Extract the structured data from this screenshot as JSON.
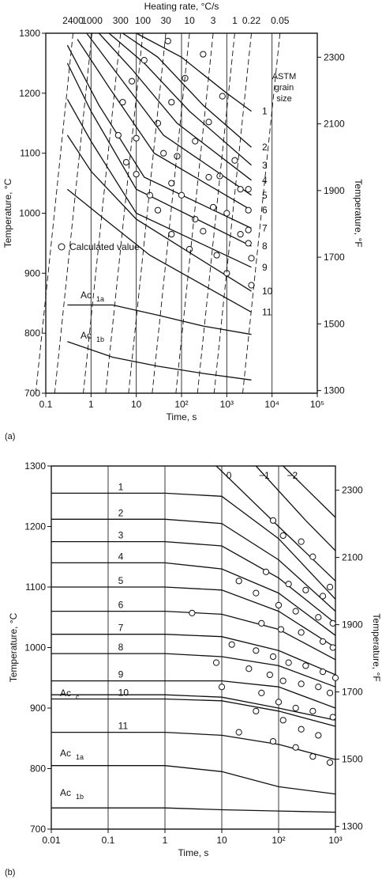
{
  "chart_data": [
    {
      "id": "a",
      "type": "line",
      "panel_label": "(a)",
      "top_axis_label": "Heating rate, °C/s",
      "top_ticks": [
        "2400",
        "1000",
        "300",
        "100",
        "30",
        "10",
        "3",
        "1",
        "0.22",
        "0.05"
      ],
      "xlabel": "Time, s",
      "xscale": "log",
      "xlim": [
        0.1,
        100000
      ],
      "xticks": [
        "0.1",
        "1",
        "10",
        "10²",
        "10³",
        "10⁴",
        "10⁵"
      ],
      "ylabel": "Temperature, °C",
      "ylim": [
        700,
        1300
      ],
      "yticks": [
        "700",
        "800",
        "900",
        "1000",
        "1100",
        "1200",
        "1300"
      ],
      "y2label": "Temperature, °F",
      "y2ticks": [
        "1300",
        "1500",
        "1700",
        "1900",
        "2100",
        "2300"
      ],
      "grain_title": [
        "ASTM",
        "grain",
        "size"
      ],
      "legend_text": "Calculated value",
      "labels": {
        "grain_1": "1",
        "grain_2": "2",
        "grain_3": "3",
        "grain_4": "4",
        "grain_5": "5",
        "grain_6": "6",
        "grain_7": "7",
        "grain_8": "8",
        "grain_9": "9",
        "grain_10": "10",
        "grain_11": "11",
        "ac1a": "Ac",
        "ac1a_sub": "1a",
        "ac1b": "Ac",
        "ac1b_sub": "1b"
      },
      "series": [
        {
          "name": "1",
          "points": [
            [
              10,
              1300
            ],
            [
              100,
              1260
            ],
            [
              1000,
              1200
            ],
            [
              3500,
              1170
            ]
          ]
        },
        {
          "name": "2",
          "points": [
            [
              5,
              1300
            ],
            [
              30,
              1260
            ],
            [
              300,
              1180
            ],
            [
              3500,
              1110
            ]
          ]
        },
        {
          "name": "3",
          "points": [
            [
              2.5,
              1300
            ],
            [
              15,
              1250
            ],
            [
              150,
              1170
            ],
            [
              3500,
              1080
            ]
          ]
        },
        {
          "name": "4",
          "points": [
            [
              1.5,
              1300
            ],
            [
              8,
              1240
            ],
            [
              80,
              1150
            ],
            [
              3500,
              1055
            ]
          ]
        },
        {
          "name": "5",
          "points": [
            [
              0.8,
              1300
            ],
            [
              4,
              1230
            ],
            [
              40,
              1130
            ],
            [
              3500,
              1030
            ]
          ]
        },
        {
          "name": "6",
          "points": [
            [
              0.5,
              1290
            ],
            [
              2.5,
              1210
            ],
            [
              25,
              1100
            ],
            [
              3500,
              1005
            ]
          ]
        },
        {
          "name": "7",
          "points": [
            [
              0.3,
              1280
            ],
            [
              1.5,
              1180
            ],
            [
              15,
              1060
            ],
            [
              3500,
              975
            ]
          ]
        },
        {
          "name": "8",
          "points": [
            [
              0.3,
              1250
            ],
            [
              1,
              1170
            ],
            [
              10,
              1040
            ],
            [
              3500,
              945
            ]
          ]
        },
        {
          "name": "9",
          "points": [
            [
              0.3,
              1190
            ],
            [
              1,
              1120
            ],
            [
              10,
              1000
            ],
            [
              3500,
              910
            ]
          ]
        },
        {
          "name": "10",
          "points": [
            [
              0.3,
              1130
            ],
            [
              1,
              1070
            ],
            [
              10,
              990
            ],
            [
              3500,
              870
            ]
          ]
        },
        {
          "name": "11",
          "points": [
            [
              0.3,
              1040
            ],
            [
              2,
              990
            ],
            [
              20,
              930
            ],
            [
              3500,
              835
            ]
          ]
        },
        {
          "name": "Ac1a",
          "points": [
            [
              0.3,
              847
            ],
            [
              3,
              847
            ],
            [
              30,
              830
            ],
            [
              300,
              812
            ],
            [
              3500,
              798
            ]
          ]
        },
        {
          "name": "Ac1b",
          "points": [
            [
              0.3,
              786
            ],
            [
              3,
              760
            ],
            [
              30,
              745
            ],
            [
              300,
              733
            ],
            [
              3500,
              722
            ]
          ]
        }
      ],
      "calculated_values": [
        [
          50,
          1287
        ],
        [
          300,
          1265
        ],
        [
          15,
          1255
        ],
        [
          120,
          1225
        ],
        [
          800,
          1195
        ],
        [
          8,
          1220
        ],
        [
          60,
          1185
        ],
        [
          400,
          1152
        ],
        [
          5,
          1185
        ],
        [
          30,
          1150
        ],
        [
          200,
          1120
        ],
        [
          1500,
          1088
        ],
        [
          10,
          1125
        ],
        [
          80,
          1095
        ],
        [
          700,
          1062
        ],
        [
          3000,
          1040
        ],
        [
          4,
          1130
        ],
        [
          40,
          1100
        ],
        [
          400,
          1060
        ],
        [
          2000,
          1040
        ],
        [
          6,
          1085
        ],
        [
          60,
          1050
        ],
        [
          500,
          1010
        ],
        [
          10,
          1065
        ],
        [
          100,
          1030
        ],
        [
          1000,
          1000
        ],
        [
          3000,
          1005
        ],
        [
          20,
          1030
        ],
        [
          200,
          990
        ],
        [
          2000,
          965
        ],
        [
          3000,
          972
        ],
        [
          30,
          1005
        ],
        [
          300,
          970
        ],
        [
          3000,
          950
        ],
        [
          60,
          965
        ],
        [
          600,
          930
        ],
        [
          3500,
          925
        ],
        [
          150,
          940
        ],
        [
          1000,
          900
        ],
        [
          3500,
          880
        ]
      ]
    },
    {
      "id": "b",
      "type": "line",
      "panel_label": "(b)",
      "xlabel": "Time, s",
      "xscale": "log",
      "xlim": [
        0.01,
        1000
      ],
      "xticks": [
        "0.01",
        "0.1",
        "1",
        "10",
        "10²",
        "10³"
      ],
      "ylabel": "Temperature, °C",
      "ylim": [
        700,
        1300
      ],
      "yticks": [
        "700",
        "800",
        "900",
        "1000",
        "1100",
        "1200",
        "1300"
      ],
      "y2label": "Temperature, °F",
      "y2ticks": [
        "1300",
        "1500",
        "1700",
        "1900",
        "2100",
        "2300"
      ],
      "labels": {
        "grain_1": "1",
        "grain_2": "2",
        "grain_3": "3",
        "grain_4": "4",
        "grain_5": "5",
        "grain_6": "6",
        "grain_7": "7",
        "grain_8": "8",
        "grain_9": "9",
        "grain_10": "10",
        "grain_11": "11",
        "grain_0": "0",
        "grain_m1": "−1",
        "grain_m2": "−2",
        "acc": "Ac",
        "acc_sub": "c",
        "ac1a": "Ac",
        "ac1a_sub": "1a",
        "ac1b": "Ac",
        "ac1b_sub": "1b"
      },
      "series": [
        {
          "name": "0",
          "points": [
            [
              8,
              1300
            ],
            [
              100,
              1200
            ],
            [
              1000,
              1110
            ]
          ]
        },
        {
          "name": "−1",
          "points": [
            [
              40,
              1300
            ],
            [
              300,
              1210
            ],
            [
              1000,
              1160
            ]
          ]
        },
        {
          "name": "−2",
          "points": [
            [
              120,
              1300
            ],
            [
              1000,
              1215
            ]
          ]
        },
        {
          "name": "1",
          "points": [
            [
              0.01,
              1255
            ],
            [
              1,
              1255
            ],
            [
              10,
              1250
            ],
            [
              100,
              1180
            ],
            [
              1000,
              1080
            ]
          ]
        },
        {
          "name": "2",
          "points": [
            [
              0.01,
              1212
            ],
            [
              1,
              1212
            ],
            [
              10,
              1205
            ],
            [
              100,
              1145
            ],
            [
              1000,
              1060
            ]
          ]
        },
        {
          "name": "3",
          "points": [
            [
              0.01,
              1175
            ],
            [
              1,
              1175
            ],
            [
              10,
              1168
            ],
            [
              100,
              1115
            ],
            [
              1000,
              1040
            ]
          ]
        },
        {
          "name": "4",
          "points": [
            [
              0.01,
              1140
            ],
            [
              1,
              1140
            ],
            [
              10,
              1130
            ],
            [
              100,
              1090
            ],
            [
              1000,
              1020
            ]
          ]
        },
        {
          "name": "5",
          "points": [
            [
              0.01,
              1100
            ],
            [
              1,
              1100
            ],
            [
              10,
              1095
            ],
            [
              100,
              1060
            ],
            [
              1000,
              1000
            ]
          ]
        },
        {
          "name": "6",
          "points": [
            [
              0.01,
              1060
            ],
            [
              1,
              1060
            ],
            [
              10,
              1055
            ],
            [
              100,
              1030
            ],
            [
              1000,
              980
            ]
          ]
        },
        {
          "name": "7",
          "points": [
            [
              0.01,
              1022
            ],
            [
              1,
              1022
            ],
            [
              10,
              1018
            ],
            [
              100,
              995
            ],
            [
              1000,
              955
            ]
          ]
        },
        {
          "name": "8",
          "points": [
            [
              0.01,
              990
            ],
            [
              1,
              990
            ],
            [
              10,
              985
            ],
            [
              100,
              970
            ],
            [
              1000,
              935
            ]
          ]
        },
        {
          "name": "9",
          "points": [
            [
              0.01,
              945
            ],
            [
              1,
              945
            ],
            [
              10,
              945
            ],
            [
              100,
              935
            ],
            [
              1000,
              900
            ]
          ]
        },
        {
          "name": "10",
          "points": [
            [
              0.01,
              915
            ],
            [
              1,
              915
            ],
            [
              10,
              912
            ],
            [
              100,
              895
            ],
            [
              1000,
              870
            ]
          ]
        },
        {
          "name": "11",
          "points": [
            [
              0.01,
              860
            ],
            [
              1,
              860
            ],
            [
              10,
              855
            ],
            [
              100,
              840
            ],
            [
              1000,
              815
            ]
          ]
        },
        {
          "name": "Acc",
          "points": [
            [
              0.01,
              922
            ],
            [
              1,
              922
            ],
            [
              10,
              918
            ],
            [
              100,
              900
            ],
            [
              1000,
              880
            ]
          ]
        },
        {
          "name": "Ac1a",
          "points": [
            [
              0.01,
              805
            ],
            [
              1,
              805
            ],
            [
              10,
              795
            ],
            [
              100,
              770
            ],
            [
              1000,
              758
            ]
          ]
        },
        {
          "name": "Ac1b",
          "points": [
            [
              0.01,
              735
            ],
            [
              1,
              735
            ],
            [
              10,
              732
            ],
            [
              100,
              730
            ],
            [
              1000,
              728
            ]
          ]
        }
      ],
      "calculated_values": [
        [
          80,
          1210
        ],
        [
          120,
          1185
        ],
        [
          250,
          1175
        ],
        [
          400,
          1150
        ],
        [
          800,
          1100
        ],
        [
          20,
          1110
        ],
        [
          60,
          1125
        ],
        [
          150,
          1105
        ],
        [
          300,
          1095
        ],
        [
          600,
          1085
        ],
        [
          40,
          1090
        ],
        [
          100,
          1070
        ],
        [
          200,
          1060
        ],
        [
          500,
          1050
        ],
        [
          900,
          1040
        ],
        [
          3,
          1057
        ],
        [
          50,
          1040
        ],
        [
          110,
          1030
        ],
        [
          250,
          1025
        ],
        [
          600,
          1010
        ],
        [
          900,
          1000
        ],
        [
          15,
          1005
        ],
        [
          40,
          995
        ],
        [
          80,
          985
        ],
        [
          150,
          975
        ],
        [
          300,
          970
        ],
        [
          600,
          960
        ],
        [
          1000,
          950
        ],
        [
          8,
          975
        ],
        [
          30,
          965
        ],
        [
          70,
          955
        ],
        [
          120,
          945
        ],
        [
          250,
          940
        ],
        [
          500,
          935
        ],
        [
          800,
          925
        ],
        [
          10,
          935
        ],
        [
          50,
          925
        ],
        [
          100,
          910
        ],
        [
          200,
          900
        ],
        [
          400,
          895
        ],
        [
          900,
          885
        ],
        [
          40,
          895
        ],
        [
          120,
          880
        ],
        [
          250,
          865
        ],
        [
          500,
          855
        ],
        [
          20,
          860
        ],
        [
          80,
          845
        ],
        [
          200,
          835
        ],
        [
          400,
          820
        ],
        [
          800,
          810
        ]
      ]
    }
  ]
}
